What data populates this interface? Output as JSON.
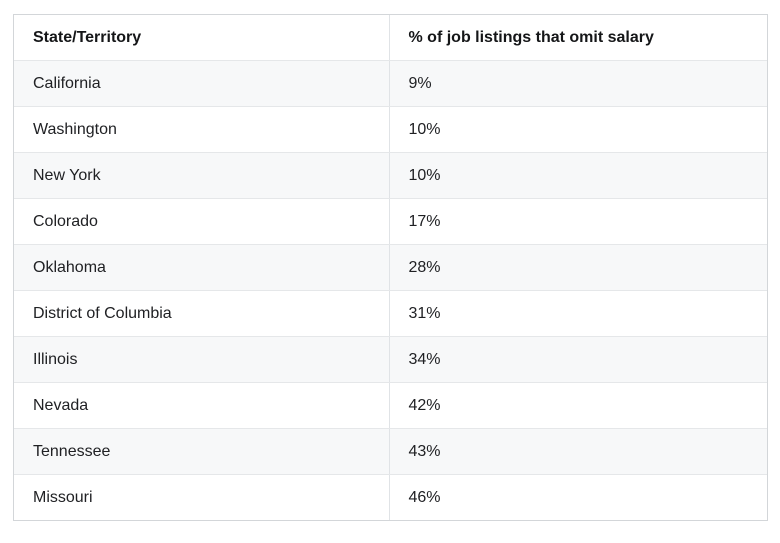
{
  "colors": {
    "row_alt_background": "#f7f8f9",
    "row_background": "#ffffff",
    "border_outer": "#d3d6d9",
    "border_inner": "#e5e7e9",
    "text": "#202124"
  },
  "chart_data": {
    "type": "table",
    "title": "",
    "columns": [
      "State/Territory",
      "% of job listings that omit salary"
    ],
    "rows": [
      [
        "California",
        "9%"
      ],
      [
        "Washington",
        "10%"
      ],
      [
        "New York",
        "10%"
      ],
      [
        "Colorado",
        "17%"
      ],
      [
        "Oklahoma",
        "28%"
      ],
      [
        "District of Columbia",
        "31%"
      ],
      [
        "Illinois",
        "34%"
      ],
      [
        "Nevada",
        "42%"
      ],
      [
        "Tennessee",
        "43%"
      ],
      [
        "Missouri",
        "46%"
      ]
    ]
  }
}
